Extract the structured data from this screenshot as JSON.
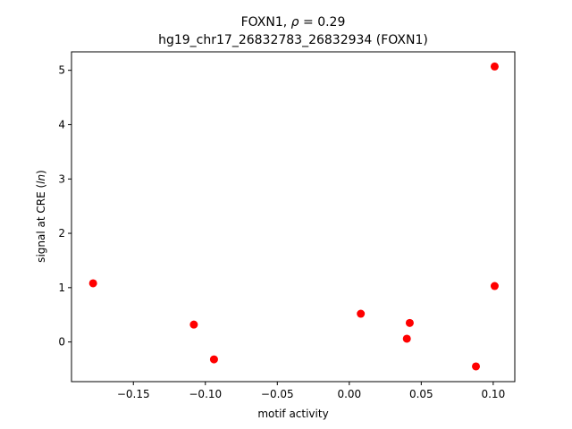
{
  "chart_data": {
    "type": "scatter",
    "title_prefix": "FOXN1, ",
    "title_rho": "ρ",
    "title_suffix": " = 0.29",
    "subtitle": "hg19_chr17_26832783_26832934 (FOXN1)",
    "xlabel": "motif activity",
    "ylabel_prefix": "signal at CRE (",
    "ylabel_italic": "ln",
    "ylabel_suffix": ")",
    "xlim": [
      -0.193,
      0.115
    ],
    "ylim": [
      -0.73,
      5.34
    ],
    "x_ticks": [
      -0.15,
      -0.1,
      -0.05,
      0.0,
      0.05,
      0.1
    ],
    "x_tick_labels": [
      "−0.15",
      "−0.10",
      "−0.05",
      "0.00",
      "0.05",
      "0.10"
    ],
    "y_ticks": [
      0,
      1,
      2,
      3,
      4,
      5
    ],
    "y_tick_labels": [
      "0",
      "1",
      "2",
      "3",
      "4",
      "5"
    ],
    "point_color": "#ff0000",
    "points": [
      {
        "x": -0.178,
        "y": 1.08
      },
      {
        "x": -0.108,
        "y": 0.32
      },
      {
        "x": -0.094,
        "y": -0.32
      },
      {
        "x": 0.008,
        "y": 0.52
      },
      {
        "x": 0.04,
        "y": 0.06
      },
      {
        "x": 0.042,
        "y": 0.35
      },
      {
        "x": 0.088,
        "y": -0.45
      },
      {
        "x": 0.101,
        "y": 5.07
      },
      {
        "x": 0.101,
        "y": 1.03
      }
    ]
  }
}
